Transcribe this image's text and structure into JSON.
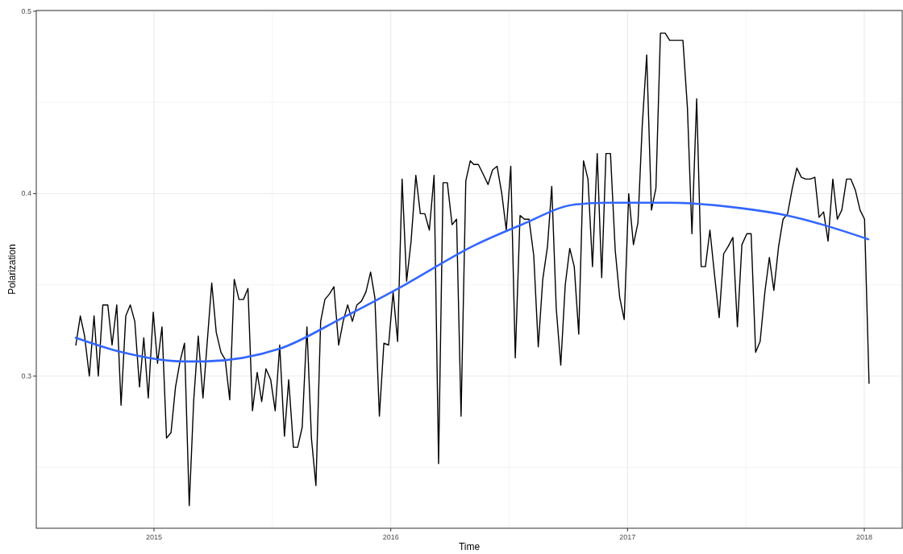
{
  "chart_data": {
    "type": "line",
    "xlabel": "Time",
    "ylabel": "Polarization",
    "xlim": [
      2014.503,
      2018.16
    ],
    "ylim": [
      0.2166,
      0.5004
    ],
    "xticks": [
      2015,
      {
        "value": 2015.5,
        "label": null
      },
      2016,
      {
        "value": 2016.5,
        "label": null
      },
      2017,
      {
        "value": 2017.5,
        "label": null
      },
      2018
    ],
    "yticks": [
      {
        "value": 0.25,
        "label": null
      },
      0.3,
      {
        "value": 0.35,
        "label": null
      },
      0.4,
      {
        "value": 0.45,
        "label": null
      },
      0.5
    ],
    "grid": true,
    "marker": "none",
    "series": [
      {
        "color": "#000000",
        "line_style": "solid",
        "x": [
          2014.67,
          2014.689,
          2014.707,
          2014.727,
          2014.747,
          2014.765,
          2014.784,
          2014.805,
          2014.823,
          2014.843,
          2014.861,
          2014.881,
          2014.9,
          2014.919,
          2014.939,
          2014.957,
          2014.976,
          2014.997,
          2015.015,
          2015.034,
          2015.053,
          2015.072,
          2015.091,
          2015.11,
          2015.129,
          2015.149,
          2015.168,
          2015.187,
          2015.207,
          2015.244,
          2015.263,
          2015.283,
          2015.301,
          2015.32,
          2015.339,
          2015.359,
          2015.378,
          2015.397,
          2015.416,
          2015.436,
          2015.455,
          2015.473,
          2015.493,
          2015.512,
          2015.531,
          2015.551,
          2015.569,
          2015.589,
          2015.607,
          2015.626,
          2015.646,
          2015.665,
          2015.684,
          2015.704,
          2015.722,
          2015.741,
          2015.76,
          2015.78,
          2015.799,
          2015.818,
          2015.838,
          2015.857,
          2015.876,
          2015.895,
          2015.915,
          2015.933,
          2015.952,
          2015.971,
          2015.991,
          2016.01,
          2016.029,
          2016.048,
          2016.067,
          2016.086,
          2016.106,
          2016.125,
          2016.144,
          2016.163,
          2016.183,
          2016.202,
          2016.221,
          2016.239,
          2016.259,
          2016.278,
          2016.297,
          2016.317,
          2016.336,
          2016.351,
          2016.37,
          2016.389,
          2016.411,
          2016.43,
          2016.449,
          2016.469,
          2016.488,
          2016.507,
          2016.526,
          2016.546,
          2016.565,
          2016.584,
          2016.604,
          2016.623,
          2016.642,
          2016.662,
          2016.68,
          2016.699,
          2016.718,
          2016.737,
          2016.756,
          2016.775,
          2016.794,
          2016.814,
          2016.833,
          2016.852,
          2016.872,
          2016.891,
          2016.909,
          2016.928,
          2016.948,
          2016.967,
          2016.986,
          2017.005,
          2017.025,
          2017.044,
          2017.062,
          2017.081,
          2017.101,
          2017.12,
          2017.139,
          2017.159,
          2017.178,
          2017.197,
          2017.216,
          2017.234,
          2017.253,
          2017.272,
          2017.292,
          2017.311,
          2017.329,
          2017.348,
          2017.367,
          2017.387,
          2017.406,
          2017.425,
          2017.445,
          2017.464,
          2017.483,
          2017.504,
          2017.522,
          2017.541,
          2017.56,
          2017.58,
          2017.599,
          2017.618,
          2017.638,
          2017.657,
          2017.676,
          2017.696,
          2017.715,
          2017.734,
          2017.752,
          2017.772,
          2017.791,
          2017.809,
          2017.828,
          2017.847,
          2017.867,
          2017.886,
          2017.905,
          2017.925,
          2017.943,
          2017.962,
          2017.982,
          2018.001,
          2018.02
        ],
        "values": [
          0.317,
          0.333,
          0.322,
          0.3,
          0.333,
          0.3,
          0.339,
          0.339,
          0.317,
          0.339,
          0.284,
          0.333,
          0.339,
          0.33,
          0.294,
          0.321,
          0.288,
          0.335,
          0.307,
          0.327,
          0.266,
          0.269,
          0.294,
          0.308,
          0.318,
          0.229,
          0.287,
          0.322,
          0.288,
          0.351,
          0.324,
          0.313,
          0.309,
          0.287,
          0.353,
          0.342,
          0.342,
          0.348,
          0.281,
          0.302,
          0.286,
          0.304,
          0.298,
          0.281,
          0.317,
          0.267,
          0.298,
          0.261,
          0.261,
          0.272,
          0.327,
          0.266,
          0.24,
          0.33,
          0.342,
          0.345,
          0.349,
          0.317,
          0.33,
          0.339,
          0.33,
          0.339,
          0.341,
          0.346,
          0.357,
          0.343,
          0.278,
          0.318,
          0.317,
          0.346,
          0.319,
          0.408,
          0.352,
          0.374,
          0.41,
          0.389,
          0.389,
          0.38,
          0.41,
          0.252,
          0.406,
          0.406,
          0.383,
          0.386,
          0.278,
          0.407,
          0.418,
          0.416,
          0.416,
          0.411,
          0.405,
          0.413,
          0.415,
          0.4,
          0.38,
          0.415,
          0.31,
          0.388,
          0.386,
          0.386,
          0.366,
          0.316,
          0.353,
          0.371,
          0.404,
          0.337,
          0.306,
          0.35,
          0.37,
          0.36,
          0.323,
          0.418,
          0.408,
          0.36,
          0.422,
          0.354,
          0.422,
          0.422,
          0.369,
          0.343,
          0.331,
          0.4,
          0.372,
          0.384,
          0.437,
          0.476,
          0.391,
          0.403,
          0.488,
          0.488,
          0.484,
          0.484,
          0.484,
          0.484,
          0.447,
          0.378,
          0.452,
          0.36,
          0.36,
          0.38,
          0.356,
          0.332,
          0.367,
          0.371,
          0.376,
          0.327,
          0.372,
          0.378,
          0.378,
          0.313,
          0.319,
          0.346,
          0.365,
          0.347,
          0.371,
          0.386,
          0.389,
          0.403,
          0.414,
          0.409,
          0.408,
          0.408,
          0.409,
          0.387,
          0.39,
          0.374,
          0.408,
          0.386,
          0.391,
          0.408,
          0.408,
          0.402,
          0.391,
          0.386,
          0.296
        ]
      },
      {
        "color": "#3366ff",
        "line_style": "solid",
        "x": [
          2014.67,
          2014.867,
          2015.126,
          2015.201,
          2015.531,
          2015.797,
          2016.045,
          2016.359,
          2016.553,
          2016.777,
          2016.92,
          2017.176,
          2017.482,
          2017.676,
          2018.017
        ],
        "values": [
          0.321,
          0.313,
          0.308,
          0.308,
          0.315,
          0.332,
          0.349,
          0.372,
          0.383,
          0.394,
          0.395,
          0.395,
          0.392,
          0.388,
          0.375
        ]
      }
    ]
  }
}
